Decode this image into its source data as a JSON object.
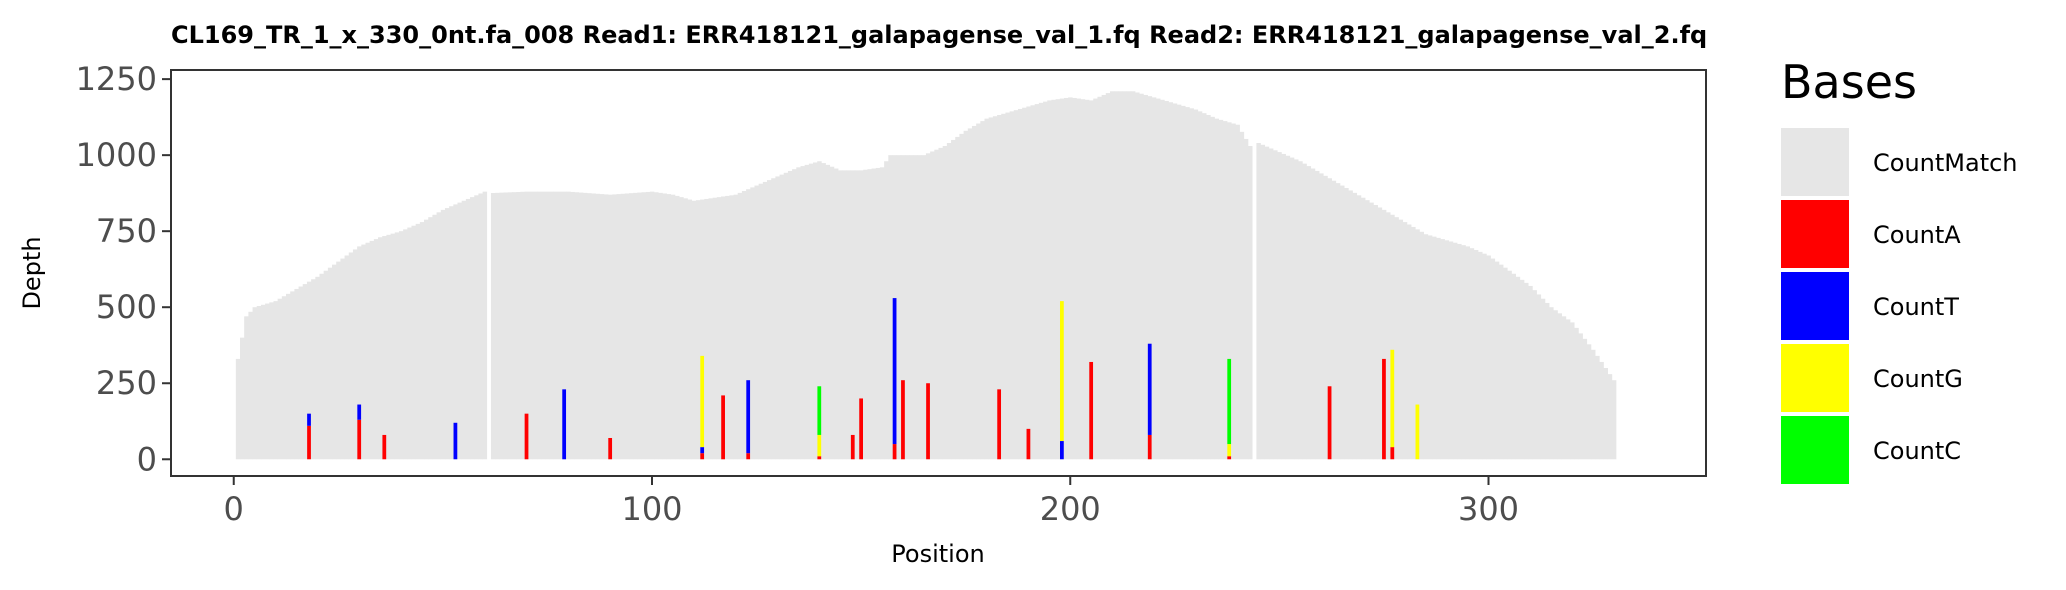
{
  "chart_data": {
    "type": "bar",
    "stacked": true,
    "title": "CL169_TR_1_x_330_0nt.fa_008   Read1: ERR418121_galapagense_val_1.fq   Read2: ERR418121_galapagense_val_2.fq",
    "xlabel": "Position",
    "ylabel": "Depth",
    "xlim": [
      -15,
      352
    ],
    "ylim": [
      -55,
      1280
    ],
    "xticks": [
      0,
      100,
      200,
      300
    ],
    "yticks": [
      0,
      250,
      500,
      750,
      1000,
      1250
    ],
    "grid": false,
    "legend": {
      "title": "Bases",
      "position": "right",
      "entries": [
        {
          "name": "CountMatch",
          "color": "#e6e6e6"
        },
        {
          "name": "CountA",
          "color": "#ff0000"
        },
        {
          "name": "CountT",
          "color": "#0000ff"
        },
        {
          "name": "CountG",
          "color": "#ffff00"
        },
        {
          "name": "CountC",
          "color": "#00ff00"
        }
      ]
    },
    "positions": {
      "start": 1,
      "end": 330
    },
    "match_profile": [
      [
        1,
        330
      ],
      [
        3,
        470
      ],
      [
        5,
        500
      ],
      [
        10,
        520
      ],
      [
        15,
        560
      ],
      [
        20,
        600
      ],
      [
        25,
        650
      ],
      [
        30,
        700
      ],
      [
        35,
        730
      ],
      [
        40,
        750
      ],
      [
        45,
        780
      ],
      [
        50,
        820
      ],
      [
        55,
        850
      ],
      [
        60,
        880
      ],
      [
        61,
        875
      ],
      [
        70,
        880
      ],
      [
        80,
        880
      ],
      [
        90,
        870
      ],
      [
        100,
        880
      ],
      [
        105,
        870
      ],
      [
        110,
        850
      ],
      [
        115,
        860
      ],
      [
        120,
        870
      ],
      [
        125,
        900
      ],
      [
        130,
        930
      ],
      [
        135,
        960
      ],
      [
        140,
        980
      ],
      [
        145,
        950
      ],
      [
        150,
        950
      ],
      [
        155,
        960
      ],
      [
        157,
        1000
      ],
      [
        160,
        1000
      ],
      [
        165,
        1000
      ],
      [
        170,
        1030
      ],
      [
        175,
        1080
      ],
      [
        180,
        1120
      ],
      [
        185,
        1140
      ],
      [
        190,
        1160
      ],
      [
        195,
        1180
      ],
      [
        200,
        1190
      ],
      [
        205,
        1180
      ],
      [
        210,
        1210
      ],
      [
        215,
        1210
      ],
      [
        220,
        1190
      ],
      [
        225,
        1170
      ],
      [
        230,
        1150
      ],
      [
        235,
        1120
      ],
      [
        240,
        1100
      ],
      [
        243,
        1030
      ],
      [
        245,
        1040
      ],
      [
        250,
        1010
      ],
      [
        255,
        980
      ],
      [
        260,
        940
      ],
      [
        265,
        900
      ],
      [
        270,
        860
      ],
      [
        275,
        820
      ],
      [
        280,
        780
      ],
      [
        285,
        740
      ],
      [
        290,
        720
      ],
      [
        295,
        700
      ],
      [
        300,
        670
      ],
      [
        305,
        620
      ],
      [
        310,
        570
      ],
      [
        315,
        500
      ],
      [
        320,
        450
      ],
      [
        325,
        360
      ],
      [
        330,
        260
      ]
    ],
    "dips": [
      {
        "position": 61,
        "value": 0
      },
      {
        "position": 244,
        "value": 0
      }
    ],
    "mismatch_bars": [
      {
        "position": 18,
        "A": 110,
        "T": 40,
        "G": 0,
        "C": 0
      },
      {
        "position": 30,
        "A": 130,
        "T": 50,
        "G": 0,
        "C": 0
      },
      {
        "position": 36,
        "A": 80,
        "T": 0,
        "G": 0,
        "C": 0
      },
      {
        "position": 53,
        "A": 0,
        "T": 120,
        "G": 0,
        "C": 0
      },
      {
        "position": 70,
        "A": 150,
        "T": 0,
        "G": 0,
        "C": 0
      },
      {
        "position": 79,
        "A": 0,
        "T": 230,
        "G": 0,
        "C": 0
      },
      {
        "position": 90,
        "A": 70,
        "T": 0,
        "G": 0,
        "C": 0
      },
      {
        "position": 112,
        "A": 20,
        "T": 20,
        "G": 300,
        "C": 0
      },
      {
        "position": 117,
        "A": 210,
        "T": 0,
        "G": 0,
        "C": 0
      },
      {
        "position": 123,
        "A": 20,
        "T": 240,
        "G": 0,
        "C": 0
      },
      {
        "position": 140,
        "A": 10,
        "T": 0,
        "G": 70,
        "C": 160
      },
      {
        "position": 148,
        "A": 80,
        "T": 0,
        "G": 0,
        "C": 0
      },
      {
        "position": 150,
        "A": 200,
        "T": 0,
        "G": 0,
        "C": 0
      },
      {
        "position": 158,
        "A": 50,
        "T": 480,
        "G": 0,
        "C": 0
      },
      {
        "position": 160,
        "A": 260,
        "T": 0,
        "G": 0,
        "C": 0
      },
      {
        "position": 166,
        "A": 250,
        "T": 0,
        "G": 0,
        "C": 0
      },
      {
        "position": 172,
        "A": 0,
        "T": 0,
        "G": 0,
        "C": 0
      },
      {
        "position": 183,
        "A": 230,
        "T": 0,
        "G": 0,
        "C": 0
      },
      {
        "position": 190,
        "A": 100,
        "T": 0,
        "G": 0,
        "C": 0
      },
      {
        "position": 198,
        "A": 0,
        "T": 60,
        "G": 460,
        "C": 0
      },
      {
        "position": 205,
        "A": 320,
        "T": 0,
        "G": 0,
        "C": 0
      },
      {
        "position": 219,
        "A": 80,
        "T": 300,
        "G": 0,
        "C": 0
      },
      {
        "position": 238,
        "A": 10,
        "T": 0,
        "G": 40,
        "C": 280
      },
      {
        "position": 262,
        "A": 240,
        "T": 0,
        "G": 0,
        "C": 0
      },
      {
        "position": 275,
        "A": 330,
        "T": 0,
        "G": 0,
        "C": 0
      },
      {
        "position": 277,
        "A": 40,
        "T": 0,
        "G": 320,
        "C": 0
      },
      {
        "position": 283,
        "A": 0,
        "T": 0,
        "G": 180,
        "C": 0
      }
    ]
  }
}
